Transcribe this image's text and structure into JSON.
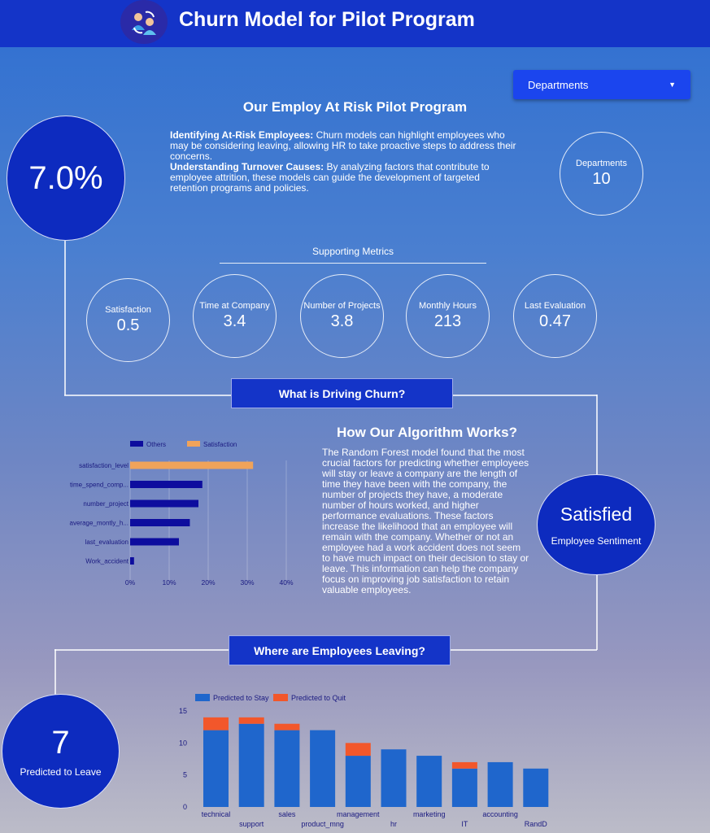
{
  "header": {
    "title": "Churn Model for Pilot Program",
    "logo_icon": "users-refresh-icon"
  },
  "departments_select": {
    "label": "Departments",
    "caret_icon": "caret-down-icon"
  },
  "program": {
    "title": "Our Employ At Risk Pilot Program",
    "p1_bold": "Identifying At-Risk Employees:",
    "p1_text": " Churn models can highlight employees who may be considering leaving, allowing HR to take proactive steps to address their concerns.",
    "p2_bold": "Understanding Turnover Causes:",
    "p2_text": " By analyzing factors that contribute to employee attrition, these models can guide the development of targeted retention programs and policies."
  },
  "churn_rate": {
    "value": "7.0%"
  },
  "departments_count": {
    "label": "Departments",
    "value": "10"
  },
  "supporting": {
    "title": "Supporting Metrics",
    "metrics": [
      {
        "label": "Satisfaction",
        "value": "0.5"
      },
      {
        "label": "Time at Company",
        "value": "3.4"
      },
      {
        "label": "Number of Projects",
        "value": "3.8"
      },
      {
        "label": "Monthly Hours",
        "value": "213"
      },
      {
        "label": "Last Evaluation",
        "value": "0.47"
      }
    ]
  },
  "driving": {
    "title": "What is Driving Churn?"
  },
  "algorithm": {
    "title": "How Our Algorithm Works?",
    "text": "The Random Forest model found that the most crucial factors for predicting whether employees will stay or leave a company are the length of time they have been with the company, the number of projects they have, a moderate number of hours worked, and higher performance evaluations. These factors increase the likelihood that an employee will remain with the company. Whether or not an employee had a work accident does not seem to have much impact on their decision to stay or leave. This information can help the company focus on improving job satisfaction to retain valuable employees."
  },
  "sentiment": {
    "value": "Satisfied",
    "label": "Employee Sentiment"
  },
  "leaving": {
    "title": "Where are Employees Leaving?"
  },
  "predicted_leave": {
    "value": "7",
    "label": "Predicted to Leave"
  },
  "colors": {
    "header": "#1434c8",
    "navy": "#0d0d9e",
    "orange": "#f0a35a",
    "bar_blue": "#1f66cc",
    "bar_red": "#f2572b"
  },
  "chart_data": [
    {
      "type": "bar",
      "orientation": "horizontal",
      "categories": [
        "satisfaction_level",
        "time_spend_comp...",
        "number_project",
        "average_montly_h...",
        "last_evaluation",
        "Work_accident"
      ],
      "series": [
        {
          "name": "Others",
          "values": [
            0,
            18.5,
            17.5,
            15.3,
            12.5,
            1
          ]
        },
        {
          "name": "Satisfaction",
          "values": [
            31.5,
            0,
            0,
            0,
            0,
            0
          ]
        }
      ],
      "xticks": [
        "0%",
        "10%",
        "20%",
        "30%",
        "40%"
      ],
      "xlim": [
        0,
        40
      ],
      "legend": "top-left"
    },
    {
      "type": "bar",
      "stacked": true,
      "categories": [
        "technical",
        "support",
        "sales",
        "product_mng",
        "management",
        "hr",
        "marketing",
        "IT",
        "accounting",
        "RandD"
      ],
      "series": [
        {
          "name": "Predicted to Stay",
          "values": [
            12,
            13,
            12,
            12,
            8,
            9,
            8,
            6,
            7,
            6
          ]
        },
        {
          "name": "Predicted to Quit",
          "values": [
            2,
            1,
            1,
            0,
            2,
            0,
            0,
            1,
            0,
            0
          ]
        }
      ],
      "yticks": [
        "0",
        "5",
        "10",
        "15"
      ],
      "ylim": [
        0,
        15
      ],
      "legend": "top-left"
    }
  ]
}
